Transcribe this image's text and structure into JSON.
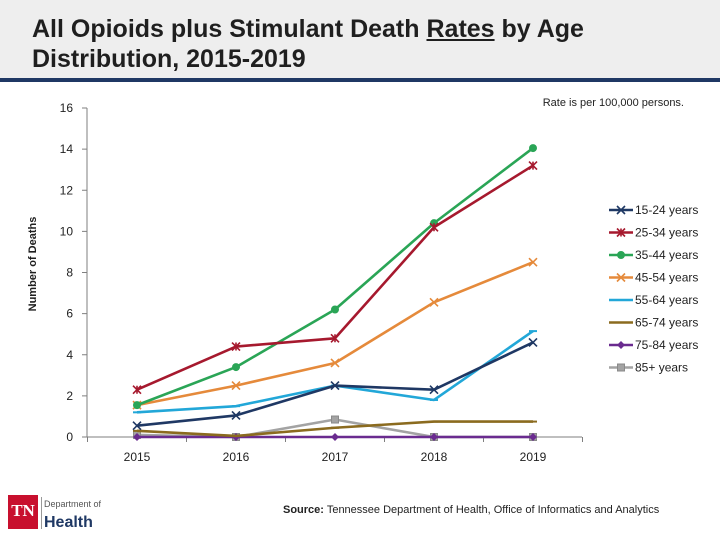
{
  "header": {
    "title_part1": "All Opioids plus Stimulant Death ",
    "title_underlined": "Rates",
    "title_part2": " by Age Distribution, 2015-2019"
  },
  "note": "Rate is per 100,000 persons.",
  "footer": {
    "logo_letters": "TN",
    "logo_sub": "Department of",
    "logo_main": "Health",
    "source_label": "Source:",
    "source_text": " Tennessee Department of Health, Office of Informatics and Analytics"
  },
  "chart_data": {
    "type": "line",
    "title": "All Opioids plus Stimulant Death Rates by Age Distribution, 2015-2019",
    "xlabel": "",
    "ylabel": "Number of Deaths",
    "x": [
      "2015",
      "2016",
      "2017",
      "2018",
      "2019"
    ],
    "ylim": [
      0,
      16
    ],
    "yticks": [
      0,
      2,
      4,
      6,
      8,
      10,
      12,
      14,
      16
    ],
    "grid": false,
    "legend_position": "right",
    "series": [
      {
        "name": "15-24 years",
        "values": [
          0.55,
          1.05,
          2.5,
          2.3,
          4.6
        ],
        "color": "#1f3864",
        "marker": "x"
      },
      {
        "name": "25-34 years",
        "values": [
          2.3,
          4.4,
          4.8,
          10.2,
          13.2
        ],
        "color": "#a6192e",
        "marker": "star"
      },
      {
        "name": "35-44 years",
        "values": [
          1.55,
          3.4,
          6.2,
          10.4,
          14.05
        ],
        "color": "#2aa556",
        "marker": "circle"
      },
      {
        "name": "45-54 years",
        "values": [
          1.55,
          2.5,
          3.6,
          6.55,
          8.5
        ],
        "color": "#e58a3b",
        "marker": "x"
      },
      {
        "name": "55-64 years",
        "values": [
          1.2,
          1.5,
          2.5,
          1.8,
          5.15
        ],
        "color": "#22a7d8",
        "marker": "dash"
      },
      {
        "name": "65-74 years",
        "values": [
          0.3,
          0.05,
          0.45,
          0.75,
          0.75
        ],
        "color": "#8b6b1f",
        "marker": "dash"
      },
      {
        "name": "75-84 years",
        "values": [
          0,
          0,
          0,
          0,
          0
        ],
        "color": "#6a2b8f",
        "marker": "diamond"
      },
      {
        "name": "85+ years",
        "values": [
          0.1,
          0.0,
          0.85,
          0.0,
          0.0
        ],
        "color": "#a3a3a3",
        "marker": "square"
      }
    ]
  }
}
